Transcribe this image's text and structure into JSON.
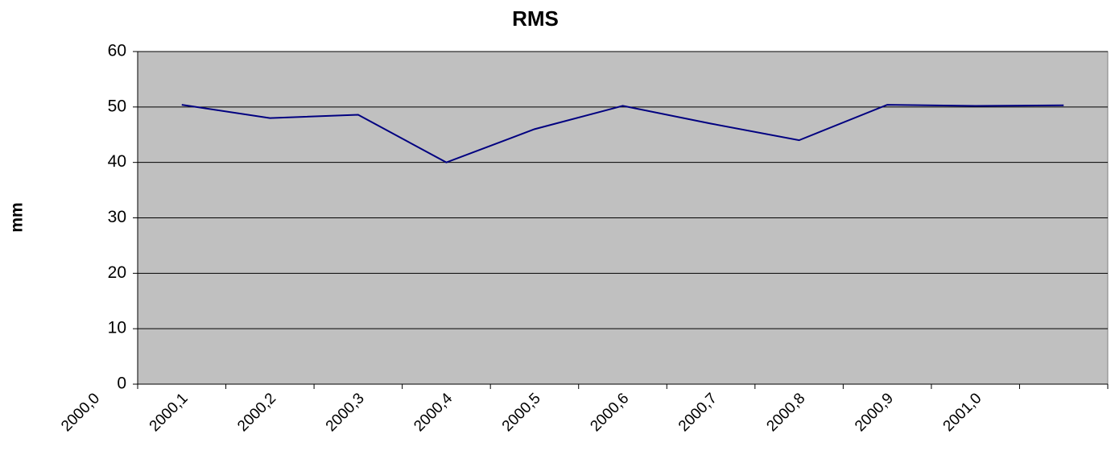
{
  "chart_data": {
    "type": "line",
    "title": "RMS",
    "y_label": "mm",
    "categories": [
      "2000,0",
      "2000,1",
      "2000,2",
      "2000,3",
      "2000,4",
      "2000,5",
      "2000,6",
      "2000,7",
      "2000,8",
      "2000,9",
      "2001,0"
    ],
    "series": [
      {
        "name": "RMS",
        "color": "#000080",
        "values": [
          50.4,
          48,
          48.6,
          40,
          46,
          50.2,
          47,
          44,
          50.4,
          50.2,
          50.3
        ]
      }
    ],
    "ylim": [
      0,
      60
    ],
    "yticks": [
      0,
      10,
      20,
      30,
      40,
      50,
      60
    ],
    "grid": true
  }
}
